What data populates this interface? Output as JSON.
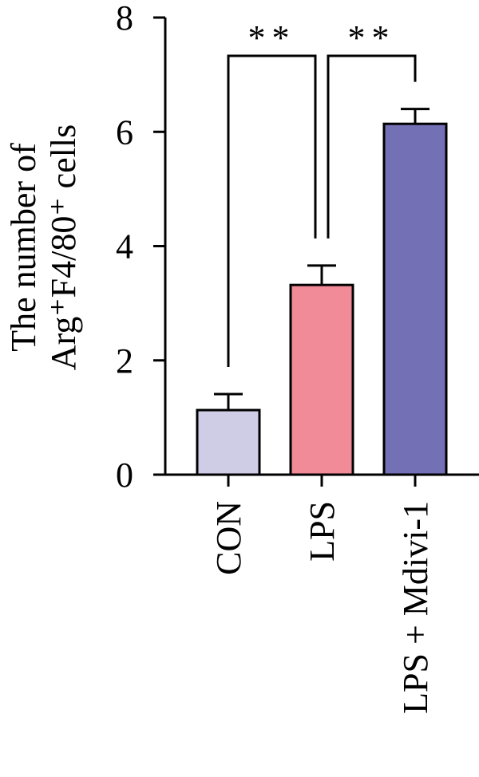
{
  "chart_data": {
    "type": "bar",
    "ylabel": [
      "The number of",
      "Arg⁺F4/80⁺ cells"
    ],
    "categories": [
      "CON",
      "LPS",
      "LPS + Mdivi-1"
    ],
    "values": [
      1.13,
      3.32,
      6.14
    ],
    "errors": [
      0.28,
      0.34,
      0.26
    ],
    "colors": [
      "#cfcde6",
      "#f28b98",
      "#7470b5"
    ],
    "ylim": [
      0,
      8
    ],
    "yticks": [
      0,
      2,
      4,
      6,
      8
    ],
    "annotations": [
      {
        "text": "**",
        "between": [
          0,
          1
        ]
      },
      {
        "text": "**",
        "between": [
          1,
          2
        ]
      }
    ]
  }
}
